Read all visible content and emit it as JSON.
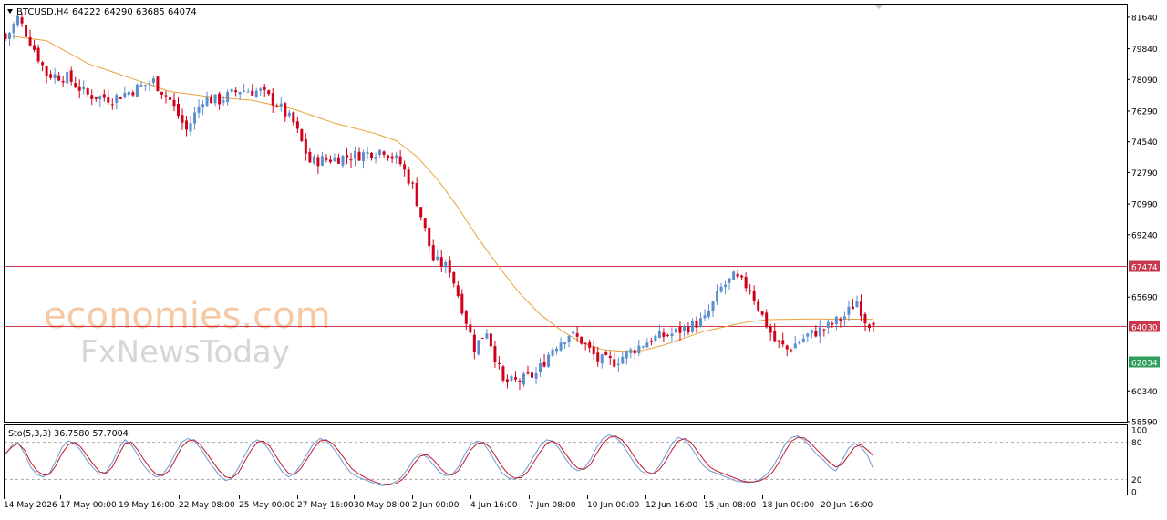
{
  "header": {
    "symbol_line": "BTCUSD,H4  64222 64290 63685 64074"
  },
  "watermark": {
    "line1": "economies.com",
    "line2": "FxNewsToday"
  },
  "indicator": {
    "label": "Sto(5,3,3) 36.7580 57.7004"
  },
  "colors": {
    "bull": "#5b8fd0",
    "bear": "#d0021b",
    "ma": "#e8a23a",
    "resistance": "#c9374e",
    "support": "#2e9e5b",
    "sto_main": "#6a9ad0",
    "sto_signal": "#c0182e"
  },
  "chart_data": [
    {
      "type": "candlestick",
      "symbol": "BTCUSD",
      "timeframe": "H4",
      "ylim": [
        58590,
        82360
      ],
      "y_ticks": [
        "81640",
        "79840",
        "78090",
        "76290",
        "74540",
        "72790",
        "70990",
        "69240",
        "65690",
        "60340",
        "58590"
      ],
      "x_ticks": [
        "14 May 2026",
        "17 May 00:00",
        "19 May 16:00",
        "22 May 08:00",
        "25 May 00:00",
        "27 May 16:00",
        "30 May 08:00",
        "2 Jun 00:00",
        "4 Jun 16:00",
        "7 Jun 08:00",
        "10 Jun 00:00",
        "12 Jun 16:00",
        "15 Jun 08:00",
        "18 Jun 00:00",
        "20 Jun 16:00"
      ],
      "last_ohlc": {
        "open": 64222,
        "high": 64290,
        "low": 63685,
        "close": 64074
      },
      "close_path": [
        [
          0,
          80400
        ],
        [
          3,
          81600
        ],
        [
          6,
          80300
        ],
        [
          10,
          78400
        ],
        [
          15,
          78200
        ],
        [
          20,
          77200
        ],
        [
          26,
          77000
        ],
        [
          31,
          77500
        ],
        [
          36,
          78000
        ],
        [
          40,
          76900
        ],
        [
          44,
          75200
        ],
        [
          48,
          77000
        ],
        [
          52,
          76900
        ],
        [
          57,
          77500
        ],
        [
          62,
          77400
        ],
        [
          66,
          76700
        ],
        [
          70,
          75600
        ],
        [
          74,
          73400
        ],
        [
          80,
          73600
        ],
        [
          86,
          73800
        ],
        [
          92,
          74100
        ],
        [
          96,
          73300
        ],
        [
          99,
          72000
        ],
        [
          104,
          67800
        ],
        [
          108,
          67300
        ],
        [
          111,
          65100
        ],
        [
          114,
          62800
        ],
        [
          117,
          63800
        ],
        [
          121,
          60800
        ],
        [
          125,
          60900
        ],
        [
          129,
          61300
        ],
        [
          133,
          62800
        ],
        [
          137,
          63600
        ],
        [
          140,
          63200
        ],
        [
          144,
          62100
        ],
        [
          148,
          62000
        ],
        [
          152,
          62600
        ],
        [
          157,
          63300
        ],
        [
          162,
          63600
        ],
        [
          166,
          64000
        ],
        [
          170,
          64400
        ],
        [
          174,
          66200
        ],
        [
          177,
          66800
        ],
        [
          181,
          66200
        ],
        [
          184,
          64600
        ],
        [
          187,
          63200
        ],
        [
          190,
          62700
        ],
        [
          195,
          63500
        ],
        [
          200,
          64000
        ],
        [
          204,
          64600
        ],
        [
          207,
          65500
        ],
        [
          209,
          64400
        ],
        [
          211,
          64074
        ]
      ],
      "ma_path": [
        [
          0,
          80600
        ],
        [
          10,
          80300
        ],
        [
          20,
          79000
        ],
        [
          30,
          78200
        ],
        [
          40,
          77400
        ],
        [
          50,
          77100
        ],
        [
          60,
          76900
        ],
        [
          70,
          76400
        ],
        [
          80,
          75600
        ],
        [
          90,
          75000
        ],
        [
          95,
          74600
        ],
        [
          100,
          73700
        ],
        [
          105,
          72400
        ],
        [
          110,
          70800
        ],
        [
          115,
          69000
        ],
        [
          120,
          67400
        ],
        [
          125,
          65900
        ],
        [
          130,
          64700
        ],
        [
          135,
          63800
        ],
        [
          140,
          63100
        ],
        [
          145,
          62700
        ],
        [
          150,
          62600
        ],
        [
          155,
          62650
        ],
        [
          160,
          62950
        ],
        [
          165,
          63350
        ],
        [
          170,
          63750
        ],
        [
          175,
          64000
        ],
        [
          180,
          64250
        ],
        [
          185,
          64400
        ],
        [
          195,
          64440
        ],
        [
          205,
          64430
        ],
        [
          211,
          64420
        ]
      ],
      "price_levels": [
        {
          "label": "67474",
          "value": 67474,
          "role": "resistance"
        },
        {
          "label": "64030",
          "value": 64030,
          "role": "current"
        },
        {
          "label": "62034",
          "value": 62034,
          "role": "support"
        }
      ]
    },
    {
      "type": "line",
      "indicator": "Stochastic",
      "params": "5,3,3",
      "main_value": 36.758,
      "signal_value": 57.7004,
      "ylim": [
        0,
        100
      ],
      "y_ticks": [
        "100",
        "80",
        "20",
        "0"
      ],
      "levels": [
        20,
        80
      ],
      "series": [
        {
          "role": "main",
          "values": [
            60,
            75,
            80,
            62,
            40,
            28,
            24,
            30,
            50,
            72,
            82,
            78,
            66,
            50,
            38,
            28,
            32,
            48,
            70,
            84,
            76,
            60,
            42,
            30,
            24,
            28,
            42,
            62,
            80,
            86,
            82,
            70,
            54,
            40,
            26,
            18,
            22,
            38,
            58,
            76,
            84,
            80,
            66,
            48,
            32,
            24,
            30,
            44,
            62,
            78,
            86,
            82,
            72,
            58,
            42,
            30,
            24,
            20,
            16,
            12,
            10,
            12,
            16,
            24,
            38,
            54,
            62,
            56,
            44,
            32,
            26,
            28,
            40,
            60,
            76,
            82,
            78,
            64,
            46,
            30,
            22,
            20,
            26,
            40,
            58,
            74,
            84,
            82,
            70,
            54,
            40,
            34,
            38,
            52,
            72,
            86,
            92,
            88,
            78,
            62,
            46,
            34,
            28,
            30,
            42,
            60,
            78,
            88,
            84,
            72,
            56,
            42,
            34,
            30,
            26,
            22,
            18,
            16,
            15,
            16,
            20,
            28,
            40,
            58,
            78,
            88,
            90,
            84,
            72,
            60,
            52,
            40,
            34,
            50,
            70,
            78,
            72,
            60,
            36
          ]
        },
        {
          "role": "signal",
          "values": [
            62,
            72,
            78,
            68,
            48,
            34,
            27,
            28,
            42,
            62,
            76,
            80,
            72,
            58,
            44,
            32,
            30,
            40,
            60,
            78,
            80,
            68,
            52,
            38,
            28,
            26,
            34,
            52,
            72,
            82,
            84,
            76,
            62,
            48,
            34,
            24,
            22,
            30,
            48,
            66,
            80,
            82,
            74,
            58,
            42,
            30,
            28,
            38,
            54,
            70,
            82,
            84,
            78,
            66,
            52,
            38,
            30,
            24,
            19,
            15,
            12,
            11,
            13,
            19,
            30,
            46,
            58,
            60,
            52,
            40,
            30,
            27,
            34,
            50,
            68,
            78,
            80,
            72,
            56,
            40,
            28,
            22,
            23,
            32,
            48,
            64,
            78,
            82,
            76,
            62,
            48,
            38,
            36,
            44,
            62,
            78,
            88,
            90,
            84,
            72,
            56,
            42,
            32,
            29,
            36,
            50,
            68,
            82,
            86,
            80,
            66,
            52,
            40,
            34,
            30,
            26,
            22,
            18,
            16,
            16,
            18,
            23,
            32,
            48,
            66,
            82,
            88,
            87,
            79,
            68,
            58,
            48,
            40,
            44,
            58,
            72,
            76,
            68,
            58
          ]
        }
      ]
    }
  ]
}
